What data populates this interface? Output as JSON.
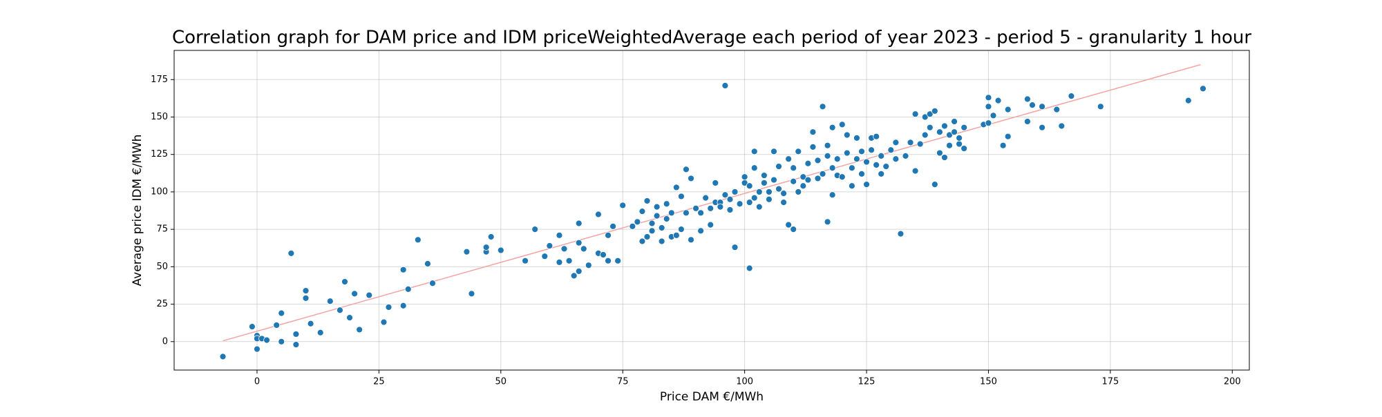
{
  "chart_data": {
    "type": "scatter",
    "title": "Correlation graph for DAM price and IDM priceWeightedAverage each period of year 2023 - period 5 - granularity 1 hour",
    "xlabel": "Price DAM €/MWh",
    "ylabel": "Average price IDM €/MWh",
    "xlim": [
      -17,
      203.5
    ],
    "ylim": [
      -19,
      194.5
    ],
    "xticks": [
      0,
      25,
      50,
      75,
      100,
      125,
      150,
      175,
      200
    ],
    "yticks": [
      0,
      25,
      50,
      75,
      100,
      125,
      150,
      175
    ],
    "grid": true,
    "points": {
      "color": "#1f77b4",
      "x": [
        -7,
        -1,
        0,
        0,
        0,
        1,
        2,
        4,
        5,
        5,
        7,
        8,
        8,
        10,
        10,
        11,
        13,
        15,
        17,
        18,
        19,
        20,
        21,
        23,
        26,
        27,
        30,
        30,
        31,
        31,
        33,
        35,
        36,
        43,
        44,
        47,
        47,
        48,
        50,
        55,
        57,
        59,
        60,
        62,
        62,
        63,
        64,
        65,
        66,
        66,
        66,
        67,
        68,
        70,
        70,
        71,
        72,
        72,
        73,
        74,
        75,
        77,
        78,
        79,
        79,
        80,
        80,
        81,
        81,
        82,
        82,
        83,
        83,
        84,
        84,
        85,
        85,
        86,
        86,
        87,
        87,
        88,
        88,
        89,
        89,
        90,
        91,
        91,
        92,
        93,
        93,
        94,
        94,
        95,
        95,
        96,
        96,
        97,
        97,
        98,
        98,
        99,
        100,
        100,
        101,
        101,
        101,
        102,
        102,
        102,
        103,
        103,
        104,
        104,
        105,
        105,
        106,
        106,
        107,
        107,
        108,
        108,
        109,
        109,
        110,
        110,
        110,
        111,
        111,
        112,
        112,
        113,
        113,
        114,
        114,
        115,
        115,
        116,
        116,
        117,
        117,
        117,
        118,
        118,
        118,
        119,
        119,
        120,
        120,
        121,
        121,
        122,
        122,
        123,
        123,
        124,
        124,
        125,
        125,
        126,
        126,
        127,
        127,
        128,
        128,
        129,
        130,
        131,
        131,
        132,
        133,
        134,
        135,
        135,
        136,
        137,
        137,
        138,
        138,
        139,
        139,
        140,
        140,
        141,
        141,
        142,
        142,
        143,
        143,
        144,
        144,
        145,
        145,
        149,
        150,
        150,
        150,
        151,
        152,
        153,
        154,
        154,
        158,
        158,
        159,
        161,
        161,
        164,
        165,
        167,
        173,
        191,
        194
      ],
      "y": [
        -10,
        10,
        4,
        2,
        -5,
        2,
        1,
        11,
        19,
        0,
        59,
        5,
        -2,
        34,
        29,
        12,
        6,
        27,
        21,
        40,
        16,
        32,
        8,
        31,
        13,
        23,
        48,
        24,
        35,
        35,
        68,
        52,
        39,
        60,
        32,
        60,
        63,
        70,
        61,
        54,
        75,
        57,
        64,
        71,
        53,
        62,
        54,
        44,
        79,
        66,
        47,
        62,
        51,
        59,
        85,
        58,
        54,
        71,
        77,
        54,
        91,
        77,
        80,
        67,
        87,
        70,
        94,
        74,
        79,
        90,
        84,
        67,
        76,
        92,
        82,
        86,
        70,
        103,
        71,
        97,
        75,
        86,
        115,
        68,
        109,
        89,
        74,
        86,
        96,
        89,
        78,
        93,
        106,
        93,
        90,
        171,
        98,
        88,
        95,
        100,
        63,
        92,
        106,
        110,
        93,
        49,
        104,
        96,
        116,
        127,
        100,
        90,
        111,
        106,
        100,
        95,
        127,
        108,
        117,
        102,
        93,
        99,
        78,
        122,
        75,
        107,
        116,
        100,
        127,
        110,
        104,
        119,
        108,
        130,
        140,
        109,
        121,
        157,
        112,
        124,
        80,
        131,
        98,
        143,
        116,
        111,
        122,
        145,
        110,
        126,
        138,
        116,
        104,
        122,
        136,
        112,
        127,
        105,
        120,
        136,
        128,
        118,
        137,
        112,
        124,
        117,
        128,
        122,
        133,
        72,
        124,
        133,
        114,
        152,
        132,
        150,
        138,
        143,
        152,
        154,
        105,
        140,
        126,
        144,
        123,
        138,
        131,
        147,
        140,
        132,
        136,
        129,
        143,
        145,
        157,
        146,
        163,
        151,
        161,
        131,
        137,
        155,
        162,
        147,
        158,
        157,
        143,
        155,
        144,
        164,
        157,
        161,
        169
      ]
    },
    "trend": {
      "color": "#f4a3a3",
      "x": [
        -7,
        193.5
      ],
      "y": [
        0.5,
        185
      ]
    }
  }
}
